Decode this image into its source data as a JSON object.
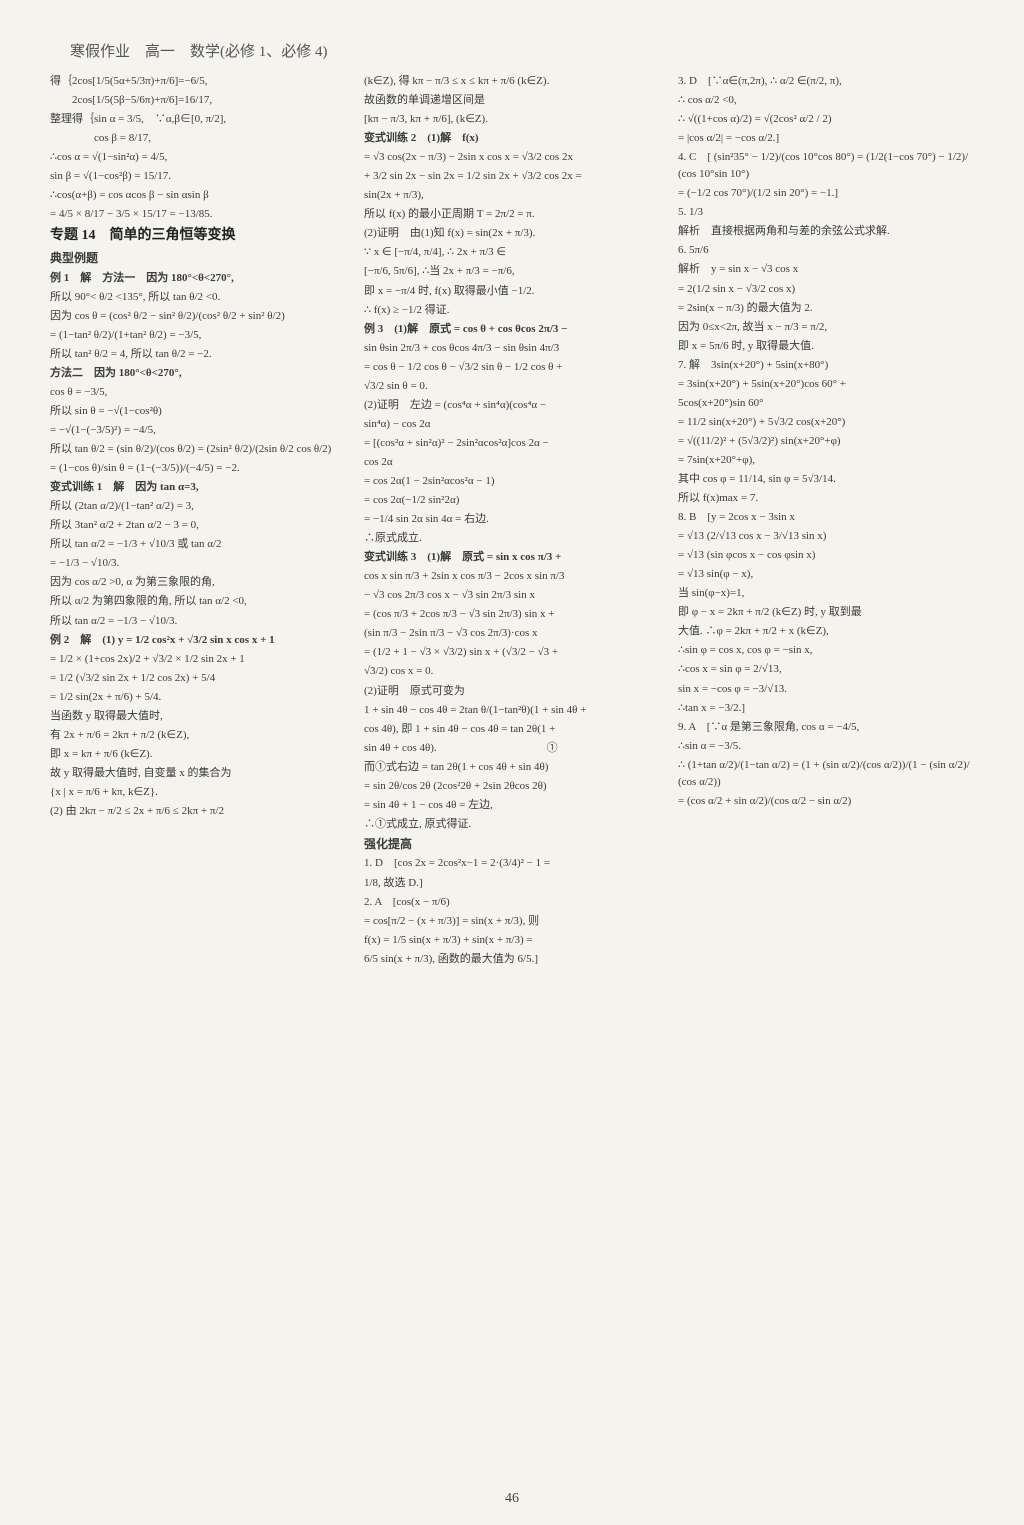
{
  "header": "寒假作业　高一　数学(必修 1、必修 4)",
  "page_number": "46",
  "col1": {
    "lines": [
      "得｛2cos[1/5(5α+5/3π)+π/6]=−6/5,",
      "　　2cos[1/5(5β−5/6π)+π/6]=16/17,",
      "整理得｛sin α = 3/5,　∵α,β∈[0, π/2],",
      "　　　　cos β = 8/17,",
      "∴cos α = √(1−sin²α) = 4/5,",
      "sin β = √(1−cos²β) = 15/17.",
      "∴cos(α+β) = cos αcos β − sin αsin β",
      "= 4/5 × 8/17 − 3/5 × 15/17 = −13/85.",
      "",
      "专题 14　简单的三角恒等变换",
      "典型例题",
      "例 1　解　方法一　因为 180°<θ<270°,",
      "所以 90°< θ/2 <135°, 所以 tan θ/2 <0.",
      "因为 cos θ = (cos² θ/2 − sin² θ/2)/(cos² θ/2 + sin² θ/2)",
      "= (1−tan² θ/2)/(1+tan² θ/2) = −3/5,",
      "所以 tan² θ/2 = 4, 所以 tan θ/2 = −2.",
      "方法二　因为 180°<θ<270°,",
      "cos θ = −3/5,",
      "所以 sin θ = −√(1−cos²θ)",
      "= −√(1−(−3/5)²) = −4/5,",
      "所以 tan θ/2 = (sin θ/2)/(cos θ/2) = (2sin² θ/2)/(2sin θ/2 cos θ/2)",
      "= (1−cos θ)/sin θ = (1−(−3/5))/(−4/5) = −2.",
      "",
      "变式训练 1　解　因为 tan α=3,",
      "所以 (2tan α/2)/(1−tan² α/2) = 3,",
      "所以 3tan² α/2 + 2tan α/2 − 3 = 0,",
      "所以 tan α/2 = −1/3 + √10/3 或 tan α/2",
      "= −1/3 − √10/3.",
      "因为 cos α/2 >0, α 为第三象限的角,",
      "所以 α/2 为第四象限的角, 所以 tan α/2 <0,",
      "所以 tan α/2 = −1/3 − √10/3.",
      "",
      "例 2　解　(1) y = 1/2 cos²x + √3/2 sin x cos x + 1",
      "= 1/2 × (1+cos 2x)/2 + √3/2 × 1/2 sin 2x + 1",
      "= 1/2 (√3/2 sin 2x + 1/2 cos 2x) + 5/4",
      "= 1/2 sin(2x + π/6) + 5/4.",
      "当函数 y 取得最大值时,",
      "有 2x + π/6 = 2kπ + π/2 (k∈Z),",
      "即 x = kπ + π/6 (k∈Z).",
      "故 y 取得最大值时, 自变量 x 的集合为",
      "{x | x = π/6 + kπ, k∈Z}.",
      "(2) 由 2kπ − π/2 ≤ 2x + π/6 ≤ 2kπ + π/2"
    ]
  },
  "col2": {
    "lines": [
      "(k∈Z), 得 kπ − π/3 ≤ x ≤ kπ + π/6 (k∈Z).",
      "故函数的单调递增区间是",
      "[kπ − π/3, kπ + π/6], (k∈Z).",
      "变式训练 2　(1)解　f(x)",
      "= √3 cos(2x − π/3) − 2sin x cos x = √3/2 cos 2x",
      "+ 3/2 sin 2x − sin 2x = 1/2 sin 2x + √3/2 cos 2x =",
      "sin(2x + π/3),",
      "所以 f(x) 的最小正周期 T = 2π/2 = π.",
      "(2)证明　由(1)知 f(x) = sin(2x + π/3).",
      "∵ x ∈ [−π/4, π/4], ∴ 2x + π/3 ∈",
      "[−π/6, 5π/6], ∴当 2x + π/3 = −π/6,",
      "即 x = −π/4 时, f(x) 取得最小值 −1/2.",
      "∴ f(x) ≥ −1/2 得证.",
      "",
      "例 3　(1)解　原式 = cos θ + cos θcos 2π/3 −",
      "sin θsin 2π/3 + cos θcos 4π/3 − sin θsin 4π/3",
      "= cos θ − 1/2 cos θ − √3/2 sin θ − 1/2 cos θ +",
      "√3/2 sin θ = 0.",
      "(2)证明　左边 = (cos⁴α + sin⁴α)(cos⁴α −",
      "sin⁴α) − cos 2α",
      "= [(cos²α + sin²α)² − 2sin²αcos²α]cos 2α −",
      "cos 2α",
      "= cos 2α(1 − 2sin²αcos²α − 1)",
      "= cos 2α(−1/2 sin²2α)",
      "= −1/4 sin 2α sin 4α = 右边.",
      "∴原式成立.",
      "",
      "变式训练 3　(1)解　原式 = sin x cos π/3 +",
      "cos x sin π/3 + 2sin x cos π/3 − 2cos x sin π/3",
      "− √3 cos 2π/3 cos x − √3 sin 2π/3 sin x",
      "= (cos π/3 + 2cos π/3 − √3 sin 2π/3) sin x +",
      "(sin π/3 − 2sin π/3 − √3 cos 2π/3)·cos x",
      "= (1/2 + 1 − √3 × √3/2) sin x + (√3/2 − √3 +",
      "√3/2) cos x = 0.",
      "(2)证明　原式可变为",
      "1 + sin 4θ − cos 4θ = 2tan θ/(1−tan²θ)(1 + sin 4θ +",
      "cos 4θ), 即 1 + sin 4θ − cos 4θ = tan 2θ(1 +",
      "sin 4θ + cos 4θ).　　　　　　　　　　①",
      "而①式右边 = tan 2θ(1 + cos 4θ + sin 4θ)",
      "= sin 2θ/cos 2θ (2cos²2θ + 2sin 2θcos 2θ)",
      "= sin 4θ + 1 − cos 4θ = 左边,",
      "∴①式成立, 原式得证.",
      "强化提高",
      "1. D　[cos 2x = 2cos²x−1 = 2·(3/4)² − 1 =",
      "1/8, 故选 D.]",
      "2. A　[cos(x − π/6)",
      "= cos[π/2 − (x + π/3)] = sin(x + π/3), 则",
      "f(x) = 1/5 sin(x + π/3) + sin(x + π/3) =",
      "6/5 sin(x + π/3), 函数的最大值为 6/5.]"
    ]
  },
  "col3": {
    "lines": [
      "3. D　[∵α∈(π,2π), ∴ α/2 ∈(π/2, π),",
      "∴ cos α/2 <0,",
      "∴ √((1+cos α)/2) = √(2cos² α/2 / 2)",
      "= |cos α/2| = −cos α/2.]",
      "4. C　[ (sin²35° − 1/2)/(cos 10°cos 80°) = (1/2(1−cos 70°) − 1/2)/(cos 10°sin 10°)",
      "= (−1/2 cos 70°)/(1/2 sin 20°) = −1.]",
      "5. 1/3",
      "解析　直接根据两角和与差的余弦公式求解.",
      "6. 5π/6",
      "解析　y = sin x − √3 cos x",
      "= 2(1/2 sin x − √3/2 cos x)",
      "= 2sin(x − π/3) 的最大值为 2.",
      "因为 0≤x<2π, 故当 x − π/3 = π/2,",
      "即 x = 5π/6 时, y 取得最大值.",
      "7. 解　3sin(x+20°) + 5sin(x+80°)",
      "= 3sin(x+20°) + 5sin(x+20°)cos 60° +",
      "5cos(x+20°)sin 60°",
      "= 11/2 sin(x+20°) + 5√3/2 cos(x+20°)",
      "= √((11/2)² + (5√3/2)²) sin(x+20°+φ)",
      "= 7sin(x+20°+φ),",
      "其中 cos φ = 11/14, sin φ = 5√3/14.",
      "所以 f(x)max = 7.",
      "8. B　[y = 2cos x − 3sin x",
      "= √13 (2/√13 cos x − 3/√13 sin x)",
      "= √13 (sin φcos x − cos φsin x)",
      "= √13 sin(φ − x),",
      "当 sin(φ−x)=1,",
      "即 φ − x = 2kπ + π/2 (k∈Z) 时, y 取到最",
      "大值. ∴φ = 2kπ + π/2 + x (k∈Z),",
      "∴sin φ = cos x, cos φ = −sin x,",
      "∴cos x = sin φ = 2/√13,",
      "sin x = −cos φ = −3/√13.",
      "∴tan x = −3/2.]",
      "9. A　[∵α 是第三象限角, cos α = −4/5,",
      "∴sin α = −3/5.",
      "∴ (1+tan α/2)/(1−tan α/2) = (1 + (sin α/2)/(cos α/2))/(1 − (sin α/2)/(cos α/2))",
      "= (cos α/2 + sin α/2)/(cos α/2 − sin α/2)"
    ]
  }
}
